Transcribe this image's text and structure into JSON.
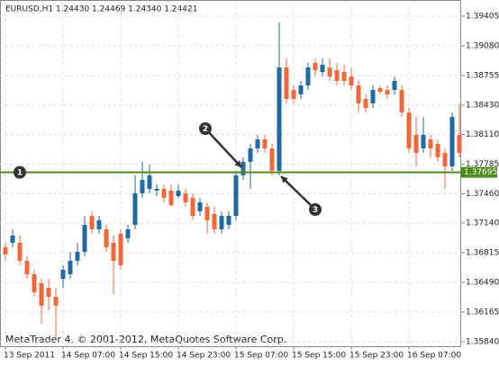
{
  "chart_data": {
    "type": "candlestick",
    "title": "EURUSD,H1  1.24430 1.24469 1.24340 1.24421",
    "footer": "MetaTrader 4, © 2001-2012, MetaQuotes Software Corp.",
    "categories": [
      "13 Sep 2011",
      null,
      null,
      null,
      null,
      null,
      null,
      null,
      "14 Sep 07:00",
      null,
      null,
      null,
      null,
      null,
      null,
      null,
      "14 Sep 15:00",
      null,
      null,
      null,
      null,
      null,
      null,
      null,
      "14 Sep 23:00",
      null,
      null,
      null,
      null,
      null,
      null,
      null,
      "15 Sep 07:00",
      null,
      null,
      null,
      null,
      null,
      null,
      null,
      "15 Sep 15:00",
      null,
      null,
      null,
      null,
      null,
      null,
      null,
      "15 Sep 23:00",
      null,
      null,
      null,
      null,
      null,
      null,
      null,
      "16 Sep 07:00",
      null,
      null,
      null,
      null,
      null,
      null,
      null
    ],
    "open": [
      1.36874,
      1.36923,
      1.36923,
      1.36726,
      1.36578,
      1.3648,
      1.3643,
      1.36332,
      1.36529,
      1.36578,
      1.36726,
      1.36824,
      1.37218,
      1.37071,
      1.37071,
      1.36923,
      1.37021,
      1.36972,
      1.3712,
      1.37465,
      1.37514,
      1.37494,
      1.37514,
      1.37494,
      1.37435,
      1.37465,
      1.37415,
      1.37268,
      1.37317,
      1.37238,
      1.37071,
      1.3712,
      1.37218,
      1.37662,
      1.37809,
      1.37957,
      1.38056,
      1.37957,
      1.37711,
      1.38844,
      1.38597,
      1.38548,
      1.38647,
      1.38893,
      1.38794,
      1.38844,
      1.38814,
      1.38794,
      1.38745,
      1.38647,
      1.38499,
      1.3845,
      1.38617,
      1.38597,
      1.38597,
      1.38597,
      1.38351,
      1.38105,
      1.37957,
      1.38056,
      1.38006,
      1.37908,
      1.3776,
      1.38105
    ],
    "high": [
      1.36923,
      1.37071,
      1.37002,
      1.36775,
      1.36627,
      1.36529,
      1.36529,
      1.3643,
      1.36677,
      1.36824,
      1.36923,
      1.37218,
      1.37268,
      1.37218,
      1.3712,
      1.37002,
      1.37071,
      1.3712,
      1.37662,
      1.37809,
      1.3778,
      1.37563,
      1.37563,
      1.37563,
      1.37563,
      1.37514,
      1.37465,
      1.37415,
      1.37366,
      1.37317,
      1.37268,
      1.37268,
      1.37711,
      1.37859,
      1.38006,
      1.38105,
      1.38105,
      1.38006,
      1.39336,
      1.38942,
      1.38647,
      1.38696,
      1.38893,
      1.38942,
      1.38942,
      1.38942,
      1.38893,
      1.38873,
      1.38844,
      1.38696,
      1.38548,
      1.38647,
      1.38647,
      1.38647,
      1.38745,
      1.38647,
      1.384,
      1.38302,
      1.38302,
      1.38105,
      1.38056,
      1.37957,
      1.38351,
      1.3845
    ],
    "low": [
      1.36726,
      1.36874,
      1.36677,
      1.36529,
      1.36332,
      1.36036,
      1.36184,
      1.35889,
      1.3643,
      1.36529,
      1.36677,
      1.36775,
      1.37021,
      1.37021,
      1.36824,
      1.36361,
      1.36627,
      1.36923,
      1.37071,
      1.37415,
      1.37465,
      1.37435,
      1.37366,
      1.37317,
      1.37415,
      1.37317,
      1.37169,
      1.37218,
      1.37021,
      1.37021,
      1.37021,
      1.37071,
      1.37169,
      1.37612,
      1.37514,
      1.37908,
      1.37908,
      1.37662,
      1.37662,
      1.3845,
      1.3845,
      1.38499,
      1.38597,
      1.38745,
      1.38745,
      1.38696,
      1.38647,
      1.38647,
      1.38597,
      1.38351,
      1.38351,
      1.384,
      1.38548,
      1.38499,
      1.38548,
      1.38302,
      1.37908,
      1.3776,
      1.37908,
      1.37859,
      1.37809,
      1.37514,
      1.37711,
      1.37859
    ],
    "close": [
      1.36795,
      1.37002,
      1.36726,
      1.36578,
      1.36381,
      1.36233,
      1.36332,
      1.36233,
      1.36627,
      1.36726,
      1.36824,
      1.3712,
      1.37071,
      1.37169,
      1.36874,
      1.36726,
      1.36677,
      1.37071,
      1.37465,
      1.37612,
      1.37662,
      1.37514,
      1.37415,
      1.37337,
      1.37494,
      1.37366,
      1.37218,
      1.37366,
      1.37169,
      1.37071,
      1.37218,
      1.37218,
      1.37662,
      1.37809,
      1.37957,
      1.38056,
      1.37957,
      1.37711,
      1.38844,
      1.38499,
      1.38499,
      1.38647,
      1.38844,
      1.38814,
      1.38873,
      1.38745,
      1.38696,
      1.38696,
      1.38647,
      1.3845,
      1.384,
      1.38597,
      1.38578,
      1.38548,
      1.38696,
      1.38351,
      1.37957,
      1.37908,
      1.38105,
      1.37957,
      1.37859,
      1.3776,
      1.38302,
      1.37908
    ],
    "up_color": "#1f6aa5",
    "down_color": "#f0683a",
    "level": 1.37695,
    "level_color": "#4e8a1e",
    "annotations": [
      "1",
      "2",
      "3"
    ],
    "ylim": [
      1.3579,
      1.39563
    ],
    "yticks": [
      1.39405,
      {
        "value": 1.3908,
        "label": "1.39080"
      },
      1.38755,
      {
        "value": 1.3843,
        "label": "1.38430"
      },
      {
        "value": 1.3811,
        "label": "1.38110"
      },
      1.37785,
      {
        "value": 1.3746,
        "label": "1.37460"
      },
      {
        "value": 1.3714,
        "label": "1.37140"
      },
      1.36815,
      {
        "value": 1.3649,
        "label": "1.36490"
      },
      1.36165,
      {
        "value": 1.3584,
        "label": "1.35840"
      }
    ],
    "grid": true
  }
}
